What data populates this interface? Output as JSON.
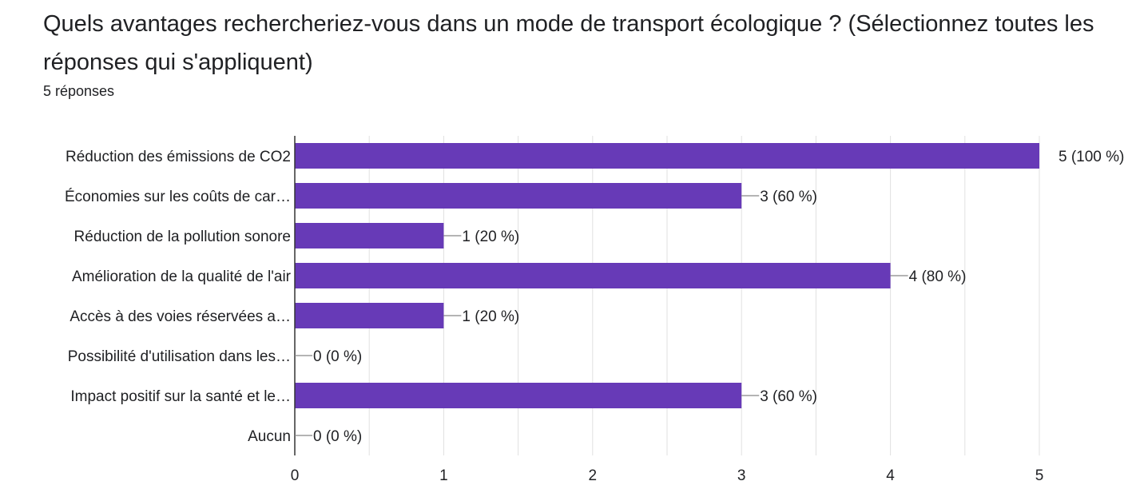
{
  "question": {
    "title": "Quels avantages rechercheriez-vous dans un mode de transport écologique ? (Sélectionnez toutes les réponses qui s'appliquent)",
    "response_count": "5 réponses"
  },
  "colors": {
    "bar": "#673ab7",
    "grid": "#e0e0e0",
    "axis": "#333333",
    "connector": "#888888"
  },
  "chart_data": {
    "type": "bar",
    "orientation": "horizontal",
    "title": "",
    "xlabel": "",
    "ylabel": "",
    "categories": [
      "Réduction des émissions de CO2",
      "Économies sur les coûts de car…",
      "Réduction de la pollution sonore",
      "Amélioration de la qualité de l'air",
      "Accès à des voies réservées a…",
      "Possibilité d'utilisation dans les…",
      "Impact positif sur la santé et le…",
      "Aucun"
    ],
    "values": [
      5,
      3,
      1,
      4,
      1,
      0,
      3,
      0
    ],
    "value_labels": [
      "5 (100 %)",
      "3 (60 %)",
      "1 (20 %)",
      "4 (80 %)",
      "1 (20 %)",
      "0 (0 %)",
      "3 (60 %)",
      "0 (0 %)"
    ],
    "xlim": [
      0,
      5
    ],
    "xticks": [
      "0",
      "1",
      "2",
      "3",
      "4",
      "5"
    ],
    "grid": true,
    "legend": "none"
  }
}
